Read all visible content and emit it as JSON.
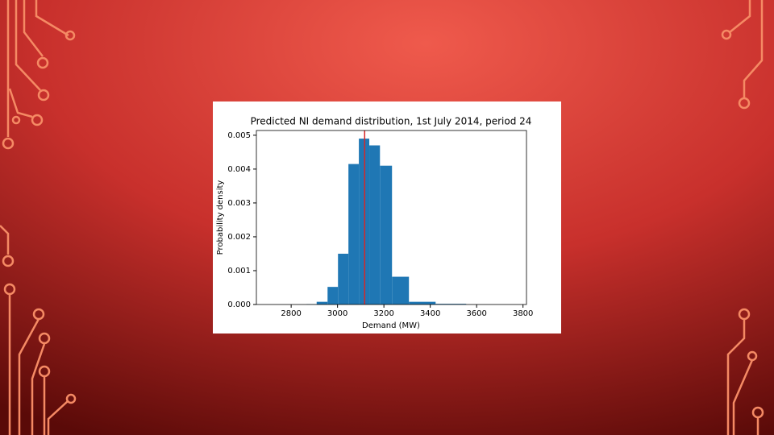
{
  "chart_data": {
    "type": "histogram",
    "title": "Predicted NI demand distribution, 1st July 2014, period 24",
    "x_label": "Demand (MW)",
    "y_label": "Probability density",
    "bins": [
      2866,
      2910,
      2957,
      3002,
      3047,
      3092,
      3137,
      3183,
      3235,
      3308,
      3423,
      3555
    ],
    "values": [
      1e-05,
      8e-05,
      0.00052,
      0.0015,
      0.00415,
      0.0049,
      0.0047,
      0.0041,
      0.00082,
      8e-05,
      2e-05
    ],
    "color": "#1f77b4",
    "vline": 3117,
    "vline_color": "#d62728",
    "xlim": [
      2650,
      3815
    ],
    "xticks": [
      2800,
      3000,
      3200,
      3400,
      3600,
      3800
    ],
    "ylim": [
      0,
      0.00514
    ],
    "yticks": [
      {
        "value": 0,
        "label": "0.000"
      },
      0.001,
      0.002,
      0.003,
      0.004,
      0.005
    ]
  }
}
